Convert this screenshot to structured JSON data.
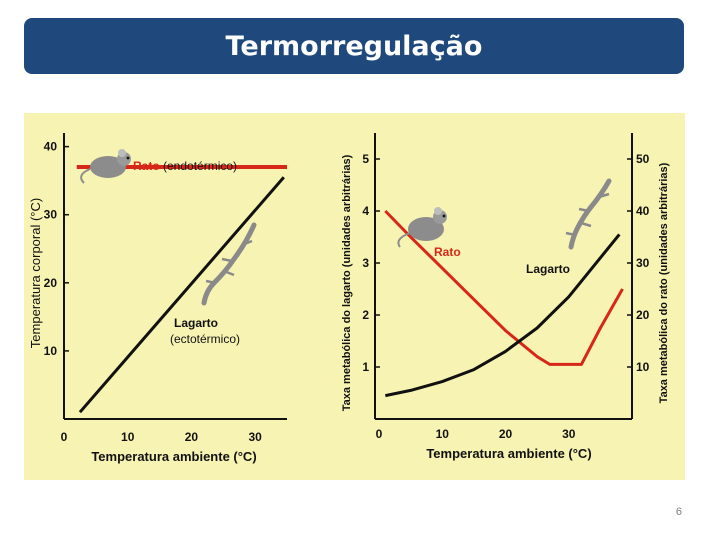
{
  "slide": {
    "title": "Termorregulação",
    "page_number": "6"
  },
  "colors": {
    "title_bar": "#1f497d",
    "figure_background": "#f7f4b3",
    "rat": "#d62718",
    "lizard": "#111111"
  },
  "icons": {
    "rat": "rat-icon",
    "lizard": "lizard-icon"
  },
  "chart_data": [
    {
      "type": "line",
      "xlabel": "Temperatura ambiente (°C)",
      "ylabel": "Temperatura corporal (°C)",
      "xlim": [
        0,
        35
      ],
      "ylim": [
        0,
        42
      ],
      "x_ticks": [
        0,
        10,
        20,
        30
      ],
      "y_ticks": [
        10,
        20,
        30,
        40
      ],
      "series": [
        {
          "name": "Rato (endotérmico)",
          "color": "#d62718",
          "x": [
            2,
            35
          ],
          "y": [
            37,
            37
          ]
        },
        {
          "name": "Lagarto (ectotérmico)",
          "color": "#111111",
          "x": [
            2.5,
            34.5
          ],
          "y": [
            1,
            35.5
          ]
        }
      ],
      "annotations": [
        {
          "text": "Rato",
          "weight": "bold",
          "color": "#d62718"
        },
        {
          "text": "(endotérmico)",
          "color": "#111111"
        },
        {
          "text": "Lagarto",
          "color": "#111111"
        },
        {
          "text": "(ectotérmico)",
          "color": "#111111"
        }
      ]
    },
    {
      "type": "line",
      "xlabel": "Temperatura ambiente (°C)",
      "ylabel_left": "Taxa metabólica do lagarto (unidades arbitrárias)",
      "ylabel_right": "Taxa metabólica do rato (unidades arbitrárias)",
      "xlim": [
        0,
        40
      ],
      "ylim_left": [
        0,
        5.5
      ],
      "ylim_right": [
        0,
        55
      ],
      "x_ticks": [
        0,
        10,
        20,
        30
      ],
      "y_ticks_left": [
        1,
        2,
        3,
        4,
        5
      ],
      "y_ticks_right": [
        10,
        20,
        30,
        40,
        50
      ],
      "series": [
        {
          "name": "Rato",
          "color": "#d62718",
          "axis": "right",
          "x": [
            1,
            5,
            10,
            15,
            20,
            25,
            27,
            30,
            32,
            35,
            38.5
          ],
          "y": [
            40,
            35,
            29,
            23,
            17,
            12,
            10.5,
            10.5,
            10.5,
            17.5,
            25
          ]
        },
        {
          "name": "Lagarto",
          "color": "#111111",
          "axis": "left",
          "x": [
            1,
            5,
            10,
            15,
            20,
            25,
            30,
            35,
            38
          ],
          "y": [
            0.45,
            0.55,
            0.72,
            0.95,
            1.3,
            1.75,
            2.35,
            3.1,
            3.55
          ]
        }
      ],
      "annotations": [
        {
          "text": "Rato",
          "weight": "bold",
          "color": "#d62718"
        },
        {
          "text": "Lagarto",
          "weight": "bold",
          "color": "#111111"
        }
      ]
    }
  ]
}
